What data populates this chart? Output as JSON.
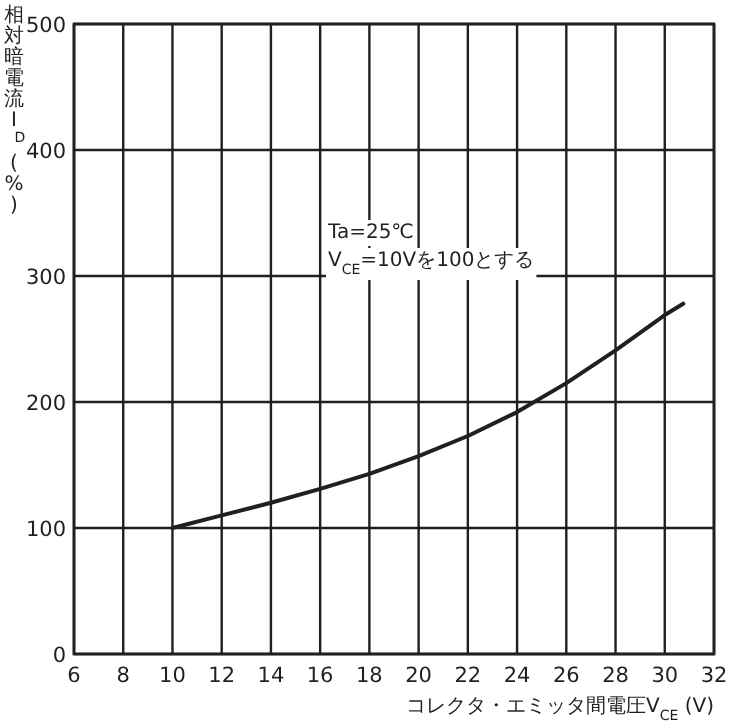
{
  "chart_data": {
    "type": "line",
    "xlabel": "コレクタ・エミッタ間電圧V$_{CE}$ (V)",
    "ylabel": "相対暗電流I$_{D}$ (%)",
    "annotations": [
      "Ta=25℃",
      "V$_{CE}$=10Vを100とする"
    ],
    "x": [
      10,
      12,
      14,
      16,
      18,
      20,
      22,
      24,
      26,
      28,
      30,
      30.75
    ],
    "values": [
      100,
      110,
      120,
      131,
      143,
      157,
      173,
      192,
      215,
      241,
      269,
      278
    ],
    "color": "#231f20",
    "line_style": "solid",
    "grid": true,
    "xlim": [
      6,
      32
    ],
    "xticks": [
      6,
      8,
      10,
      12,
      14,
      16,
      18,
      20,
      22,
      24,
      26,
      28,
      30,
      32
    ],
    "ylim": [
      0,
      500
    ],
    "yticks": [
      0,
      100,
      200,
      300,
      400,
      500
    ]
  }
}
